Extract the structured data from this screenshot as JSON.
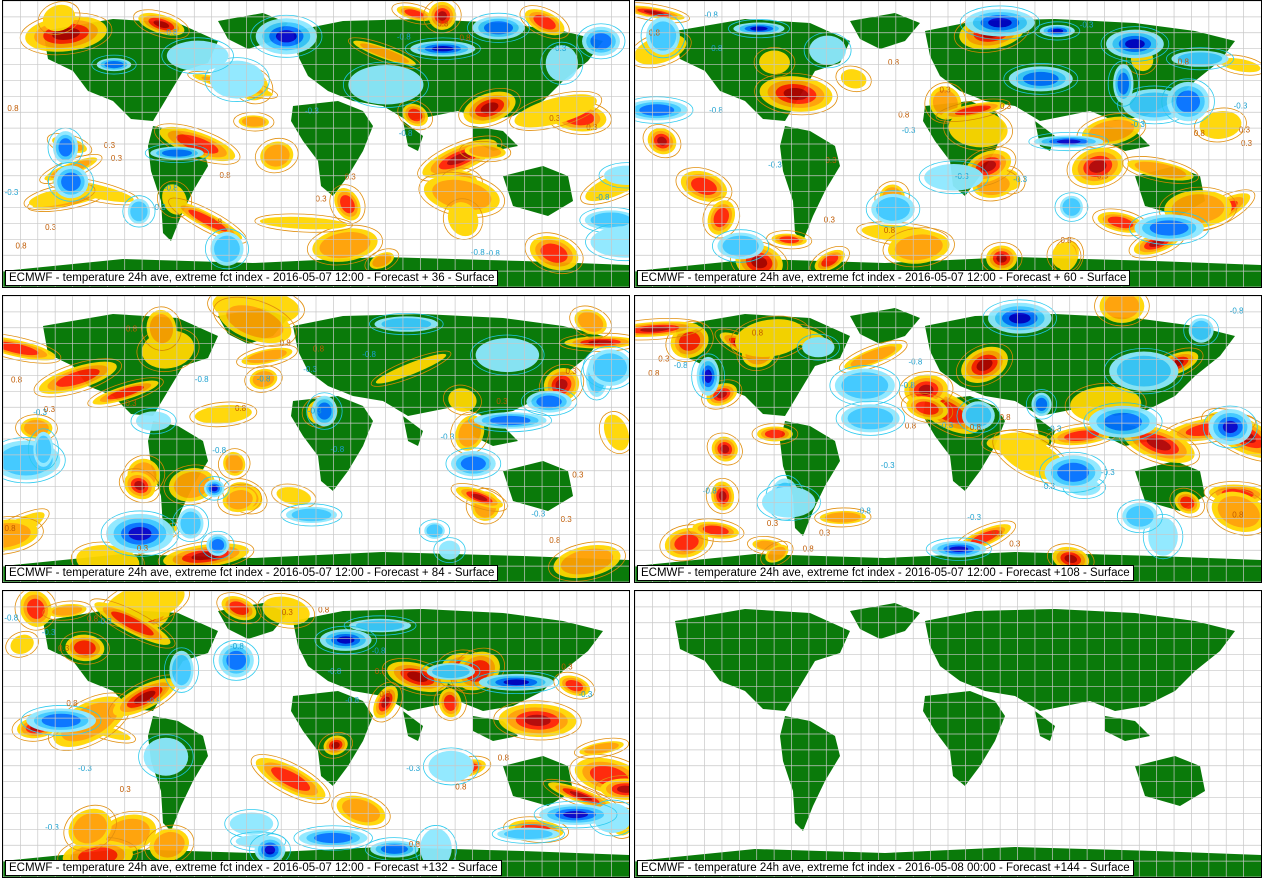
{
  "colors": {
    "land": "#0a7a0a",
    "grid": "#c8c8c8",
    "warm_contour": "#e08a00",
    "cool_contour": "#22c8ee",
    "warm_fill": [
      "#ffd600",
      "#ffa000",
      "#ff2000",
      "#b00000",
      "#6a0000"
    ],
    "cool_fill": [
      "#8ee8ff",
      "#3cc8ff",
      "#0070ff",
      "#0000c8"
    ]
  },
  "panels": [
    {
      "caption": "ECMWF - temperature 24h ave, extreme fct index - 2016-05-07 12:00 - Forecast + 36 - Surface",
      "has_field": true
    },
    {
      "caption": "ECMWF - temperature 24h ave, extreme fct index - 2016-05-07 12:00 - Forecast + 60 - Surface",
      "has_field": true
    },
    {
      "caption": "ECMWF - temperature 24h ave, extreme fct index - 2016-05-07 12:00 - Forecast + 84 - Surface",
      "has_field": true
    },
    {
      "caption": "ECMWF - temperature 24h ave, extreme fct index - 2016-05-07 12:00 - Forecast +108 - Surface",
      "has_field": true
    },
    {
      "caption": "ECMWF - temperature 24h ave, extreme fct index - 2016-05-07 12:00 - Forecast +132 - Surface",
      "has_field": true
    },
    {
      "caption": "ECMWF - temperature 24h ave, extreme fct index - 2016-05-08 00:00 - Forecast +144 - Surface",
      "has_field": false
    }
  ],
  "contour_labels": [
    "0.3",
    "0.8",
    "-0.3",
    "-0.8"
  ]
}
